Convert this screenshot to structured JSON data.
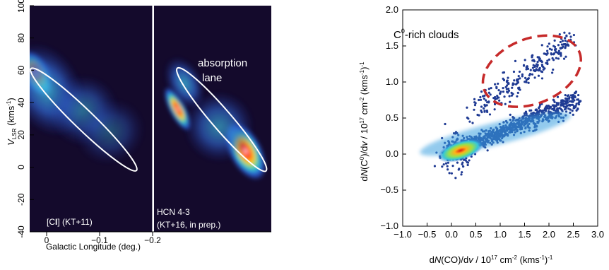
{
  "chart_data": [
    {
      "type": "heatmap",
      "panels": [
        {
          "label_prefix": "[C",
          "label_bold": "I",
          "label_suffix": "] (KT+11)",
          "blobs": [
            {
              "lon": 0.02,
              "v": 58,
              "sx": 0.012,
              "sy": 7,
              "a": 1.0
            },
            {
              "lon": 0.0,
              "v": 48,
              "sx": 0.03,
              "sy": 14,
              "a": 0.35
            },
            {
              "lon": -0.07,
              "v": 35,
              "sx": 0.03,
              "sy": 10,
              "a": 0.25
            },
            {
              "lon": -0.12,
              "v": 22,
              "sx": 0.03,
              "sy": 9,
              "a": 0.18
            }
          ],
          "ellipse": {
            "lon_top": 0.02,
            "v_top": 58,
            "lon_bottom": -0.16,
            "v_bottom": 1
          }
        },
        {
          "label_line1": "HCN 4-3",
          "label_line2": "(KT+16, in prep.)",
          "annotation_line1": "absorption",
          "annotation_line2": "lane",
          "blobs": [
            {
              "lon": 0.028,
              "v": 36,
              "sx": 0.007,
              "sy": 7,
              "a": 1.0
            },
            {
              "lon": -0.1,
              "v": 10,
              "sx": 0.014,
              "sy": 9,
              "a": 0.9
            },
            {
              "lon": -0.05,
              "v": 25,
              "sx": 0.03,
              "sy": 10,
              "a": 0.3
            },
            {
              "lon": 0.015,
              "v": 52,
              "sx": 0.015,
              "sy": 8,
              "a": 0.35
            }
          ],
          "ellipse": {
            "lon_top": 0.02,
            "v_top": 58,
            "lon_bottom": -0.13,
            "v_bottom": 1
          }
        }
      ],
      "x_ticks": [
        "0",
        "−0.1",
        "−0.2"
      ],
      "y_ticks": [
        -40,
        -20,
        0,
        20,
        40,
        60,
        80,
        100
      ],
      "xlabel": "Galactic Longitude (deg.)",
      "ylabel_main": "V",
      "ylabel_sub": "LSR",
      "ylabel_unit_pre": " (kms",
      "ylabel_unit_sup": "-1",
      "ylabel_unit_post": ")",
      "ylim": [
        -40,
        100
      ]
    },
    {
      "type": "scatter",
      "annotation_pre": "C",
      "annotation_sup": "0",
      "annotation_post": "-rich clouds",
      "xlim": [
        -1.0,
        3.0
      ],
      "ylim": [
        -1.0,
        2.0
      ],
      "x_ticks": [
        "−1.0",
        "−0.5",
        "0.0",
        "0.5",
        "1.0",
        "1.5",
        "2.0",
        "2.5",
        "3.0"
      ],
      "y_ticks": [
        "−1.0",
        "−0.5",
        "0.0",
        "0.5",
        "1.0",
        "1.5",
        "2.0"
      ],
      "xlabel_pre": "d",
      "xlabel_it": "N",
      "xlabel_mid": "(CO)/d",
      "xlabel_v": "v",
      "xlabel_post": " / 10",
      "xlabel_sup1": "17",
      "xlabel_post2": " cm",
      "xlabel_sup2": "-2",
      "xlabel_post3": " (kms",
      "xlabel_sup3": "-1",
      "xlabel_post4": ")",
      "xlabel_sup4": "-1",
      "ylabel_pre": "d",
      "ylabel_it": "N",
      "ylabel_mid": "(C",
      "ylabel_sup0": "0",
      "ylabel_mid2": ")/d",
      "ylabel_v": "v",
      "ylabel_post": " / 10",
      "ylabel_sup1": "17",
      "ylabel_post2": " cm",
      "ylabel_sup2": "-2",
      "ylabel_post3": " (kms",
      "ylabel_sup3": "-1",
      "ylabel_post4": ")",
      "ylabel_sup4": "-1",
      "main_branch": {
        "x0": 0.05,
        "y0": 0.03,
        "x1": 2.6,
        "y1": 0.75
      },
      "upper_branch": {
        "x0": 0.4,
        "y0": 0.55,
        "x1": 2.5,
        "y1": 1.6
      },
      "core": {
        "x": 0.1,
        "y": 0.03
      },
      "highlight_ellipse": {
        "cx": 1.65,
        "cy": 1.15,
        "rx": 1.05,
        "ry": 0.45,
        "angle_deg": 22,
        "color": "#c62a2a"
      },
      "point_color": "#1f3a93"
    }
  ]
}
